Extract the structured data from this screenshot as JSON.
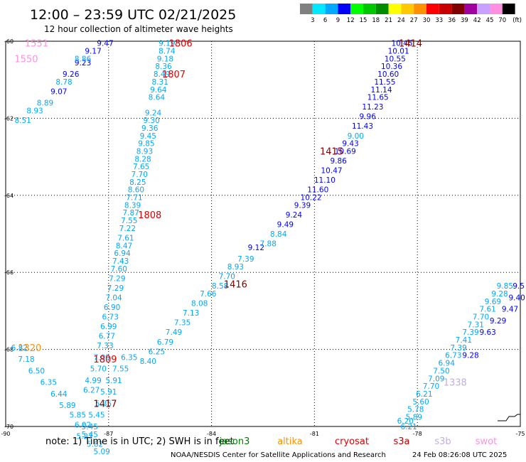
{
  "header": {
    "title": "12:00 – 23:59 UTC 02/21/2025",
    "subtitle": "12 hour collection of altimeter wave heights"
  },
  "color_scale": {
    "unit_label": "(ft)",
    "bins": [
      {
        "label": "3",
        "color": "#808080"
      },
      {
        "label": "6",
        "color": "#00e8ff"
      },
      {
        "label": "9",
        "color": "#00a8ff"
      },
      {
        "label": "12",
        "color": "#0000ff"
      },
      {
        "label": "15",
        "color": "#00ff00"
      },
      {
        "label": "18",
        "color": "#00c800"
      },
      {
        "label": "21",
        "color": "#008c00"
      },
      {
        "label": "24",
        "color": "#ffff00"
      },
      {
        "label": "27",
        "color": "#ffc800"
      },
      {
        "label": "30",
        "color": "#ff9000"
      },
      {
        "label": "33",
        "color": "#ff0000"
      },
      {
        "label": "36",
        "color": "#c80000"
      },
      {
        "label": "39",
        "color": "#800000"
      },
      {
        "label": "42",
        "color": "#a000a0"
      },
      {
        "label": "45",
        "color": "#c8a0ff"
      },
      {
        "label": "70",
        "color": "#ff90e0"
      },
      {
        "label": "",
        "color": "#000000"
      }
    ]
  },
  "footer": {
    "note": "note: 1) Time is in UTC; 2) SWH is in feet",
    "satellites": [
      {
        "name": "jason3",
        "color": "#008000"
      },
      {
        "name": "altika",
        "color": "#ff9000"
      },
      {
        "name": "cryosat",
        "color": "#e00000"
      },
      {
        "name": "s3a",
        "color": "#c00000"
      },
      {
        "name": "s3b",
        "color": "#c0b0e0"
      },
      {
        "name": "swot",
        "color": "#ff90e0"
      }
    ],
    "credit": "NOAA/NESDIS Center for Satellite Applications and Research",
    "timestamp": "24 Feb 08:26:08 UTC 2025"
  },
  "chart_data": {
    "type": "scatter",
    "title": "12:00 – 23:59 UTC 02/21/2025",
    "subtitle": "12 hour collection of altimeter wave heights",
    "xlabel": "",
    "ylabel": "",
    "xlim": [
      -90,
      -75
    ],
    "ylim": [
      -70,
      -60
    ],
    "x_ticks": [
      "-90",
      "-87",
      "-84",
      "-81",
      "-78",
      "-75"
    ],
    "y_ticks": [
      "-60",
      "-62",
      "-64",
      "-66",
      "-68",
      "-70"
    ],
    "grid": true,
    "passes": [
      {
        "label": "1551",
        "x": -89.1,
        "y": -60.05,
        "color": "#ff90e0"
      },
      {
        "label": "1550",
        "x": -89.4,
        "y": -60.45,
        "color": "#ff90e0"
      },
      {
        "label": "1806",
        "x": -84.9,
        "y": -60.05,
        "color": "#e00000"
      },
      {
        "label": "1807",
        "x": -85.1,
        "y": -60.85,
        "color": "#e00000"
      },
      {
        "label": "1808",
        "x": -85.8,
        "y": -64.5,
        "color": "#e00000"
      },
      {
        "label": "1809",
        "x": -87.1,
        "y": -68.25,
        "color": "#e00000"
      },
      {
        "label": "1320",
        "x": -89.3,
        "y": -67.95,
        "color": "#ff9000"
      },
      {
        "label": "1414",
        "x": -78.2,
        "y": -60.05,
        "color": "#800000"
      },
      {
        "label": "1415",
        "x": -80.5,
        "y": -62.85,
        "color": "#800000"
      },
      {
        "label": "1416",
        "x": -83.3,
        "y": -66.3,
        "color": "#800000"
      },
      {
        "label": "1417",
        "x": -87.1,
        "y": -69.4,
        "color": "#800000"
      },
      {
        "label": "1338",
        "x": -76.9,
        "y": -68.85,
        "color": "#c0b0e0"
      }
    ],
    "series": [
      {
        "color": "#0000ff",
        "points": [
          {
            "x": -87.1,
            "y": -60.05,
            "v": "9.47"
          },
          {
            "x": -87.45,
            "y": -60.25,
            "v": "9.17"
          },
          {
            "x": -87.75,
            "y": -60.55,
            "v": "9.23"
          },
          {
            "x": -88.1,
            "y": -60.85,
            "v": "9.26"
          },
          {
            "x": -88.45,
            "y": -61.3,
            "v": "9.07"
          }
        ]
      },
      {
        "color": "#00a8ff",
        "points": [
          {
            "x": -87.75,
            "y": -60.45,
            "v": "8.86"
          },
          {
            "x": -88.3,
            "y": -61.05,
            "v": "8.78"
          },
          {
            "x": -88.85,
            "y": -61.6,
            "v": "8.89"
          },
          {
            "x": -89.15,
            "y": -61.8,
            "v": "8.93"
          },
          {
            "x": -89.5,
            "y": -62.05,
            "v": "8.51"
          }
        ]
      },
      {
        "color": "#00a8ff",
        "points": [
          {
            "x": -85.3,
            "y": -60.05,
            "v": "9.19"
          },
          {
            "x": -85.3,
            "y": -60.25,
            "v": "8.74"
          },
          {
            "x": -85.35,
            "y": -60.45,
            "v": "9.18"
          },
          {
            "x": -85.4,
            "y": -60.65,
            "v": "8.36"
          },
          {
            "x": -85.45,
            "y": -60.85,
            "v": "8.49"
          },
          {
            "x": -85.5,
            "y": -61.05,
            "v": "8.31"
          },
          {
            "x": -85.55,
            "y": -61.25,
            "v": "9.64"
          },
          {
            "x": -85.6,
            "y": -61.45,
            "v": "8.64"
          },
          {
            "x": -85.7,
            "y": -61.85,
            "v": "9.24"
          },
          {
            "x": -85.75,
            "y": -62.05,
            "v": "9.30"
          },
          {
            "x": -85.8,
            "y": -62.25,
            "v": "9.36"
          },
          {
            "x": -85.85,
            "y": -62.45,
            "v": "9.45"
          },
          {
            "x": -85.9,
            "y": -62.65,
            "v": "9.85"
          },
          {
            "x": -85.95,
            "y": -62.85,
            "v": "8.93"
          },
          {
            "x": -86.0,
            "y": -63.05,
            "v": "8.28"
          },
          {
            "x": -86.05,
            "y": -63.25,
            "v": "7.65"
          },
          {
            "x": -86.1,
            "y": -63.45,
            "v": "7.70"
          },
          {
            "x": -86.15,
            "y": -63.65,
            "v": "8.25"
          },
          {
            "x": -86.2,
            "y": -63.85,
            "v": "8.60"
          },
          {
            "x": -86.25,
            "y": -64.05,
            "v": "7.71"
          },
          {
            "x": -86.3,
            "y": -64.25,
            "v": "8.39"
          },
          {
            "x": -86.35,
            "y": -64.45,
            "v": "7.87"
          },
          {
            "x": -86.4,
            "y": -64.65,
            "v": "7.55"
          },
          {
            "x": -86.45,
            "y": -64.85,
            "v": "7.22"
          },
          {
            "x": -86.5,
            "y": -65.1,
            "v": "7.61"
          },
          {
            "x": -86.55,
            "y": -65.3,
            "v": "8.47"
          },
          {
            "x": -86.6,
            "y": -65.5,
            "v": "6.94"
          },
          {
            "x": -86.65,
            "y": -65.7,
            "v": "7.43"
          },
          {
            "x": -86.7,
            "y": -65.9,
            "v": "7.60"
          },
          {
            "x": -86.75,
            "y": -66.15,
            "v": "7.29"
          },
          {
            "x": -86.8,
            "y": -66.4,
            "v": "7.29"
          },
          {
            "x": -86.85,
            "y": -66.65,
            "v": "7.04"
          },
          {
            "x": -86.9,
            "y": -66.9,
            "v": "6.90"
          },
          {
            "x": -86.95,
            "y": -67.15,
            "v": "6.73"
          },
          {
            "x": -87.0,
            "y": -67.4,
            "v": "6.99"
          },
          {
            "x": -87.05,
            "y": -67.65,
            "v": "6.77"
          },
          {
            "x": -87.1,
            "y": -67.9,
            "v": "7.33"
          },
          {
            "x": -87.2,
            "y": -68.2,
            "v": "7.09"
          },
          {
            "x": -87.3,
            "y": -68.5,
            "v": "5.70"
          },
          {
            "x": -87.45,
            "y": -68.8,
            "v": "4.99"
          },
          {
            "x": -87.5,
            "y": -69.05,
            "v": "6.27"
          }
        ]
      },
      {
        "color": "#00a8ff",
        "points": [
          {
            "x": -89.6,
            "y": -67.95,
            "v": "6.82"
          },
          {
            "x": -89.4,
            "y": -68.25,
            "v": "7.18"
          },
          {
            "x": -89.1,
            "y": -68.55,
            "v": "6.50"
          },
          {
            "x": -88.75,
            "y": -68.85,
            "v": "6.35"
          },
          {
            "x": -88.45,
            "y": -69.15,
            "v": "6.44"
          },
          {
            "x": -88.2,
            "y": -69.45,
            "v": "5.89"
          },
          {
            "x": -87.9,
            "y": -69.7,
            "v": "5.85"
          },
          {
            "x": -87.75,
            "y": -69.95,
            "v": "6.02"
          },
          {
            "x": -87.55,
            "y": -70.2,
            "v": "5.45"
          },
          {
            "x": -87.4,
            "y": -70.45,
            "v": "5.82"
          },
          {
            "x": -87.2,
            "y": -70.65,
            "v": "5.09"
          }
        ]
      },
      {
        "color": "#00a8ff",
        "points": [
          {
            "x": -86.4,
            "y": -68.2,
            "v": "6.35"
          },
          {
            "x": -86.65,
            "y": -68.5,
            "v": "7.55"
          },
          {
            "x": -86.85,
            "y": -68.8,
            "v": "5.91"
          },
          {
            "x": -87.0,
            "y": -69.1,
            "v": "5.91"
          },
          {
            "x": -87.15,
            "y": -69.4,
            "v": "5.35"
          },
          {
            "x": -87.35,
            "y": -69.7,
            "v": "5.45"
          },
          {
            "x": -87.55,
            "y": -70.0,
            "v": "5.45"
          },
          {
            "x": -87.7,
            "y": -70.25,
            "v": "5.27"
          }
        ]
      },
      {
        "color": "#0000ff",
        "points": [
          {
            "x": -78.45,
            "y": -60.05,
            "v": "10.45"
          },
          {
            "x": -78.55,
            "y": -60.25,
            "v": "10.01"
          },
          {
            "x": -78.65,
            "y": -60.45,
            "v": "10.55"
          },
          {
            "x": -78.75,
            "y": -60.65,
            "v": "10.36"
          },
          {
            "x": -78.85,
            "y": -60.85,
            "v": "10.60"
          },
          {
            "x": -78.95,
            "y": -61.05,
            "v": "11.55"
          },
          {
            "x": -79.05,
            "y": -61.25,
            "v": "11.14"
          },
          {
            "x": -79.15,
            "y": -61.45,
            "v": "11.65"
          },
          {
            "x": -79.3,
            "y": -61.7,
            "v": "11.23"
          },
          {
            "x": -79.45,
            "y": -61.95,
            "v": "9.96"
          },
          {
            "x": -79.6,
            "y": -62.2,
            "v": "11.43"
          },
          {
            "x": -79.95,
            "y": -62.65,
            "v": "9.43"
          },
          {
            "x": -80.1,
            "y": -62.85,
            "v": "10.69"
          },
          {
            "x": -80.3,
            "y": -63.1,
            "v": "9.86"
          },
          {
            "x": -80.5,
            "y": -63.35,
            "v": "10.47"
          },
          {
            "x": -80.7,
            "y": -63.6,
            "v": "11.10"
          },
          {
            "x": -80.9,
            "y": -63.85,
            "v": "11.60"
          },
          {
            "x": -81.1,
            "y": -64.05,
            "v": "10.22"
          },
          {
            "x": -81.35,
            "y": -64.25,
            "v": "9.39"
          },
          {
            "x": -81.6,
            "y": -64.5,
            "v": "9.24"
          },
          {
            "x": -81.85,
            "y": -64.75,
            "v": "9.49"
          },
          {
            "x": -82.7,
            "y": -65.35,
            "v": "9.12"
          }
        ]
      },
      {
        "color": "#00a8ff",
        "points": [
          {
            "x": -79.8,
            "y": -62.45,
            "v": "9.00"
          },
          {
            "x": -82.05,
            "y": -65.0,
            "v": "8.84"
          },
          {
            "x": -82.35,
            "y": -65.25,
            "v": "7.88"
          },
          {
            "x": -83.0,
            "y": -65.65,
            "v": "7.39"
          },
          {
            "x": -83.3,
            "y": -65.85,
            "v": "8.93"
          },
          {
            "x": -83.55,
            "y": -66.1,
            "v": "7.70"
          },
          {
            "x": -83.75,
            "y": -66.35,
            "v": "8.58"
          },
          {
            "x": -84.1,
            "y": -66.55,
            "v": "7.66"
          },
          {
            "x": -84.35,
            "y": -66.8,
            "v": "8.08"
          },
          {
            "x": -84.6,
            "y": -67.05,
            "v": "7.13"
          },
          {
            "x": -84.85,
            "y": -67.3,
            "v": "7.35"
          },
          {
            "x": -85.1,
            "y": -67.55,
            "v": "7.49"
          },
          {
            "x": -85.35,
            "y": -67.8,
            "v": "6.79"
          },
          {
            "x": -85.6,
            "y": -68.05,
            "v": "6.25"
          },
          {
            "x": -85.85,
            "y": -68.3,
            "v": "8.40"
          }
        ]
      },
      {
        "color": "#00a8ff",
        "points": [
          {
            "x": -78.25,
            "y": -70.0,
            "v": "6.21"
          },
          {
            "x": -78.35,
            "y": -69.85,
            "v": "6.20"
          },
          {
            "x": -78.1,
            "y": -69.75,
            "v": "5.89"
          },
          {
            "x": -78.05,
            "y": -69.55,
            "v": "5.78"
          },
          {
            "x": -77.9,
            "y": -69.35,
            "v": "5.60"
          },
          {
            "x": -77.8,
            "y": -69.15,
            "v": "6.21"
          },
          {
            "x": -77.6,
            "y": -68.95,
            "v": "7.70"
          },
          {
            "x": -77.45,
            "y": -68.75,
            "v": "7.09"
          },
          {
            "x": -77.3,
            "y": -68.55,
            "v": "7.50"
          },
          {
            "x": -77.15,
            "y": -68.35,
            "v": "6.94"
          },
          {
            "x": -76.95,
            "y": -68.15,
            "v": "6.73"
          },
          {
            "x": -76.8,
            "y": -67.95,
            "v": "7.39"
          },
          {
            "x": -76.65,
            "y": -67.75,
            "v": "7.41"
          },
          {
            "x": -76.45,
            "y": -67.55,
            "v": "7.39"
          },
          {
            "x": -76.3,
            "y": -67.35,
            "v": "7.31"
          },
          {
            "x": -76.15,
            "y": -67.15,
            "v": "7.70"
          },
          {
            "x": -75.95,
            "y": -66.95,
            "v": "7.61"
          },
          {
            "x": -75.8,
            "y": -66.75,
            "v": "9.69"
          },
          {
            "x": -75.6,
            "y": -66.55,
            "v": "9.28"
          },
          {
            "x": -75.45,
            "y": -66.35,
            "v": "9.85"
          }
        ]
      },
      {
        "color": "#0000ff",
        "points": [
          {
            "x": -76.45,
            "y": -68.15,
            "v": "9.28"
          },
          {
            "x": -75.95,
            "y": -67.55,
            "v": "9.63"
          },
          {
            "x": -75.65,
            "y": -67.25,
            "v": "9.29"
          },
          {
            "x": -75.3,
            "y": -66.95,
            "v": "9.47"
          },
          {
            "x": -75.1,
            "y": -66.65,
            "v": "9.40"
          },
          {
            "x": -75.05,
            "y": -66.35,
            "v": "9.5"
          }
        ]
      }
    ]
  }
}
